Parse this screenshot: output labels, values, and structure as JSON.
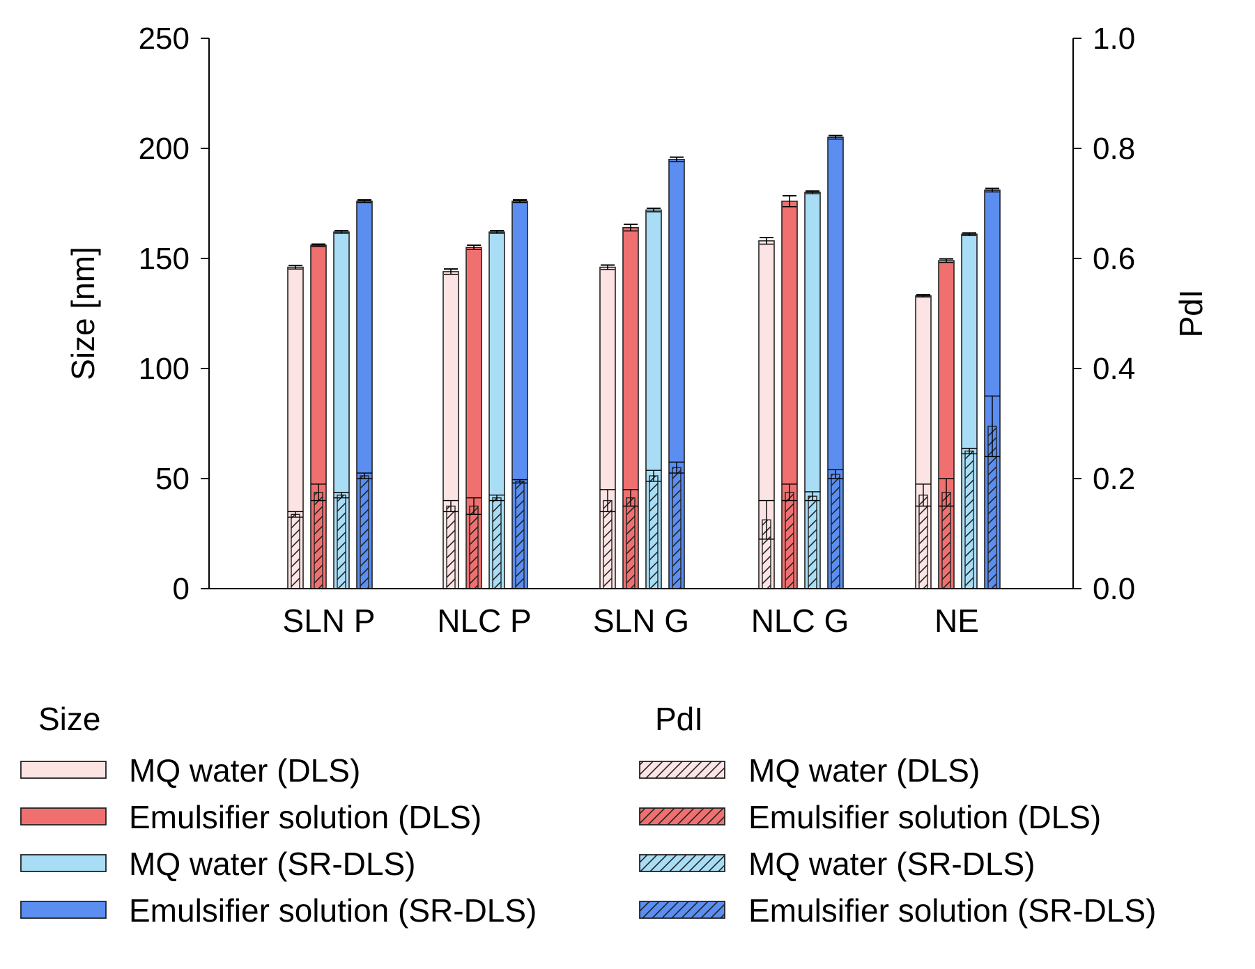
{
  "chart_data": {
    "type": "bar",
    "categories": [
      "SLN P",
      "NLC P",
      "SLN G",
      "NLC G",
      "NE"
    ],
    "y_left": {
      "label": "Size [nm]",
      "ylim": [
        0,
        250
      ],
      "ticks": [
        "0",
        "50",
        "100",
        "150",
        "200",
        "250"
      ]
    },
    "y_right": {
      "label": "PdI",
      "ylim": [
        0,
        1.0
      ],
      "ticks": [
        "0.0",
        "0.2",
        "0.4",
        "0.6",
        "0.8",
        "1.0"
      ]
    },
    "size_series": [
      {
        "name": "MQ water (DLS)",
        "color": "#fce4e4",
        "values": [
          146,
          144,
          146,
          158,
          133
        ],
        "errors": [
          0.8,
          1.2,
          1.0,
          1.5,
          0.5
        ]
      },
      {
        "name": "Emulsifier solution (DLS)",
        "color": "#f07070",
        "values": [
          156,
          155,
          164,
          176,
          149
        ],
        "errors": [
          0.5,
          1.0,
          1.5,
          2.5,
          0.8
        ]
      },
      {
        "name": "MQ water (SR-DLS)",
        "color": "#a8ddf5",
        "values": [
          162,
          162,
          172,
          180,
          161
        ],
        "errors": [
          0.6,
          0.6,
          0.8,
          0.6,
          0.6
        ]
      },
      {
        "name": "Emulsifier solution (SR-DLS)",
        "color": "#5b8ef0",
        "values": [
          176,
          176,
          195,
          205,
          181
        ],
        "errors": [
          0.6,
          0.6,
          1.0,
          0.8,
          0.8
        ]
      }
    ],
    "pdi_series": [
      {
        "name": "MQ water (DLS)",
        "color": "#fce4e4",
        "values": [
          0.135,
          0.15,
          0.16,
          0.125,
          0.17
        ],
        "errors": [
          0.005,
          0.01,
          0.02,
          0.035,
          0.02
        ]
      },
      {
        "name": "Emulsifier solution (DLS)",
        "color": "#f07070",
        "values": [
          0.175,
          0.15,
          0.165,
          0.175,
          0.175
        ],
        "errors": [
          0.015,
          0.015,
          0.015,
          0.015,
          0.025
        ]
      },
      {
        "name": "MQ water (SR-DLS)",
        "color": "#a8ddf5",
        "values": [
          0.17,
          0.165,
          0.205,
          0.168,
          0.25
        ],
        "errors": [
          0.005,
          0.005,
          0.01,
          0.008,
          0.005
        ]
      },
      {
        "name": "Emulsifier solution (SR-DLS)",
        "color": "#5b8ef0",
        "values": [
          0.205,
          0.195,
          0.22,
          0.208,
          0.295
        ],
        "errors": [
          0.005,
          0.003,
          0.01,
          0.008,
          0.055
        ]
      }
    ],
    "legend": {
      "size_heading": "Size",
      "pdi_heading": "PdI",
      "placement": "bottom"
    }
  }
}
